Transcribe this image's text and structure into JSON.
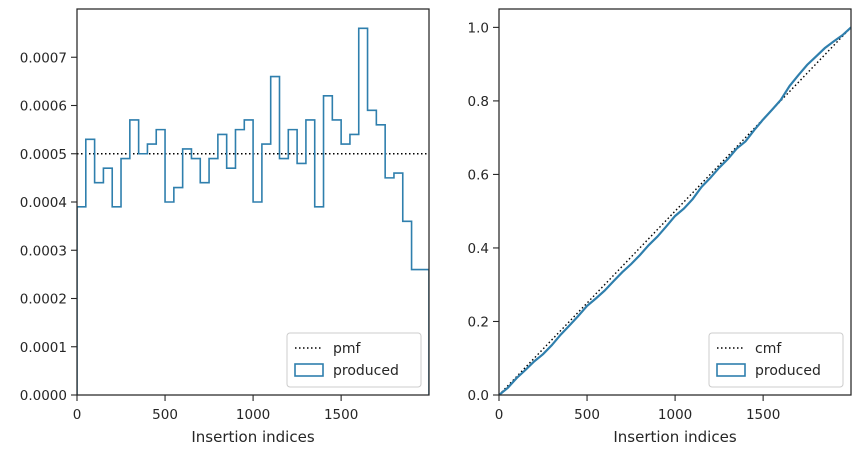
{
  "chart_data": [
    {
      "type": "step",
      "title": "",
      "xlabel": "Insertion indices",
      "ylabel": "",
      "xlim": [
        0,
        1999
      ],
      "ylim": [
        0,
        0.0008
      ],
      "xticks": [
        "0",
        "500",
        "1000",
        "1500"
      ],
      "xtick_values": [
        0,
        500,
        1000,
        1500
      ],
      "yticks": [
        "0.0000",
        "0.0001",
        "0.0002",
        "0.0003",
        "0.0004",
        "0.0005",
        "0.0006",
        "0.0007"
      ],
      "ytick_values": [
        0,
        0.0001,
        0.0002,
        0.0003,
        0.0004,
        0.0005,
        0.0006,
        0.0007
      ],
      "legend_position": "lower-right",
      "series": [
        {
          "name": "pmf",
          "style": "dotted",
          "color": "#000000",
          "x": [
            0,
            1999
          ],
          "y": [
            0.0005,
            0.0005
          ]
        },
        {
          "name": "produced",
          "style": "step",
          "color": "#2f7fad",
          "bin_edges": [
            0,
            50,
            100,
            150,
            200,
            250,
            300,
            350,
            400,
            450,
            500,
            550,
            600,
            650,
            700,
            750,
            800,
            850,
            900,
            950,
            1000,
            1050,
            1100,
            1150,
            1200,
            1250,
            1300,
            1350,
            1400,
            1450,
            1500,
            1550,
            1600,
            1650,
            1700,
            1750,
            1800,
            1850,
            1900,
            1950,
            1999
          ],
          "values": [
            0.00039,
            0.00053,
            0.00044,
            0.00047,
            0.00039,
            0.00049,
            0.00057,
            0.0005,
            0.00052,
            0.00055,
            0.0004,
            0.00043,
            0.00051,
            0.00049,
            0.00044,
            0.00049,
            0.00054,
            0.00047,
            0.00055,
            0.00057,
            0.0004,
            0.00052,
            0.00066,
            0.00049,
            0.00055,
            0.00048,
            0.00057,
            0.00039,
            0.00062,
            0.00057,
            0.00052,
            0.00054,
            0.00076,
            0.00059,
            0.00056,
            0.00045,
            0.00046,
            0.00036,
            0.00026,
            0.00026
          ]
        }
      ]
    },
    {
      "type": "line",
      "title": "",
      "xlabel": "Insertion indices",
      "ylabel": "",
      "xlim": [
        0,
        1999
      ],
      "ylim": [
        0,
        1.05
      ],
      "xticks": [
        "0",
        "500",
        "1000",
        "1500"
      ],
      "xtick_values": [
        0,
        500,
        1000,
        1500
      ],
      "yticks": [
        "0.0",
        "0.2",
        "0.4",
        "0.6",
        "0.8",
        "1.0"
      ],
      "ytick_values": [
        0,
        0.2,
        0.4,
        0.6,
        0.8,
        1.0
      ],
      "legend_position": "lower-right",
      "series": [
        {
          "name": "cmf",
          "style": "dotted",
          "color": "#000000",
          "x": [
            0,
            1999
          ],
          "y": [
            0,
            1
          ]
        },
        {
          "name": "produced",
          "style": "line",
          "color": "#2f7fad",
          "x": [
            0,
            50,
            100,
            150,
            200,
            250,
            300,
            350,
            400,
            450,
            500,
            550,
            600,
            650,
            700,
            750,
            800,
            850,
            900,
            950,
            1000,
            1050,
            1100,
            1150,
            1200,
            1250,
            1300,
            1350,
            1400,
            1450,
            1500,
            1550,
            1600,
            1650,
            1700,
            1750,
            1800,
            1850,
            1900,
            1950,
            1999
          ],
          "y": [
            0,
            0.0195,
            0.046,
            0.068,
            0.0915,
            0.111,
            0.1355,
            0.164,
            0.189,
            0.215,
            0.2425,
            0.2625,
            0.284,
            0.3095,
            0.334,
            0.356,
            0.3805,
            0.4075,
            0.431,
            0.4585,
            0.487,
            0.507,
            0.533,
            0.566,
            0.5905,
            0.618,
            0.642,
            0.6705,
            0.69,
            0.721,
            0.7495,
            0.7755,
            0.8025,
            0.8405,
            0.87,
            0.898,
            0.9205,
            0.9435,
            0.9615,
            0.9785,
            1.0
          ]
        }
      ]
    }
  ]
}
